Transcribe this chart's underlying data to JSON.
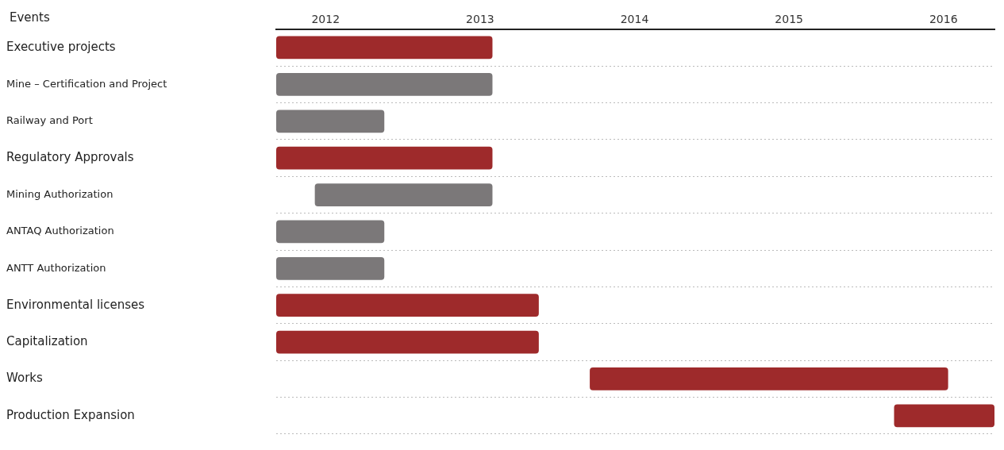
{
  "chart_data": {
    "type": "bar",
    "orientation": "horizontal",
    "ylabel": "Events",
    "categories": [
      "Executive projects",
      "Mine – Certification and Project",
      "Railway and Port",
      "Regulatory Approvals",
      "Mining Authorization",
      "ANTAQ Authorization",
      "ANTT Authorization",
      "Environmental licenses",
      "Capitalization",
      "Works",
      "Production Expansion"
    ],
    "base": [
      2012,
      2012,
      2012,
      2012,
      2012.25,
      2012,
      2012,
      2012,
      2012,
      2014.03,
      2016
    ],
    "values": [
      1.4,
      1.4,
      0.7,
      1.4,
      1.15,
      0.7,
      0.7,
      1.7,
      1.7,
      2.32,
      0.65
    ],
    "colors": [
      "#9e2a2b",
      "#7b7879",
      "#7b7879",
      "#9e2a2b",
      "#7b7879",
      "#7b7879",
      "#7b7879",
      "#9e2a2b",
      "#9e2a2b",
      "#9e2a2b",
      "#9e2a2b"
    ],
    "xlim": [
      2012,
      2016.65
    ],
    "xticks": [
      {
        "value": 2012.32,
        "label": "2012"
      },
      {
        "value": 2013.32,
        "label": "2013"
      },
      {
        "value": 2014.32,
        "label": "2014"
      },
      {
        "value": 2015.32,
        "label": "2015"
      },
      {
        "value": 2016.32,
        "label": "2016"
      }
    ],
    "grid": "y",
    "legend": false
  }
}
